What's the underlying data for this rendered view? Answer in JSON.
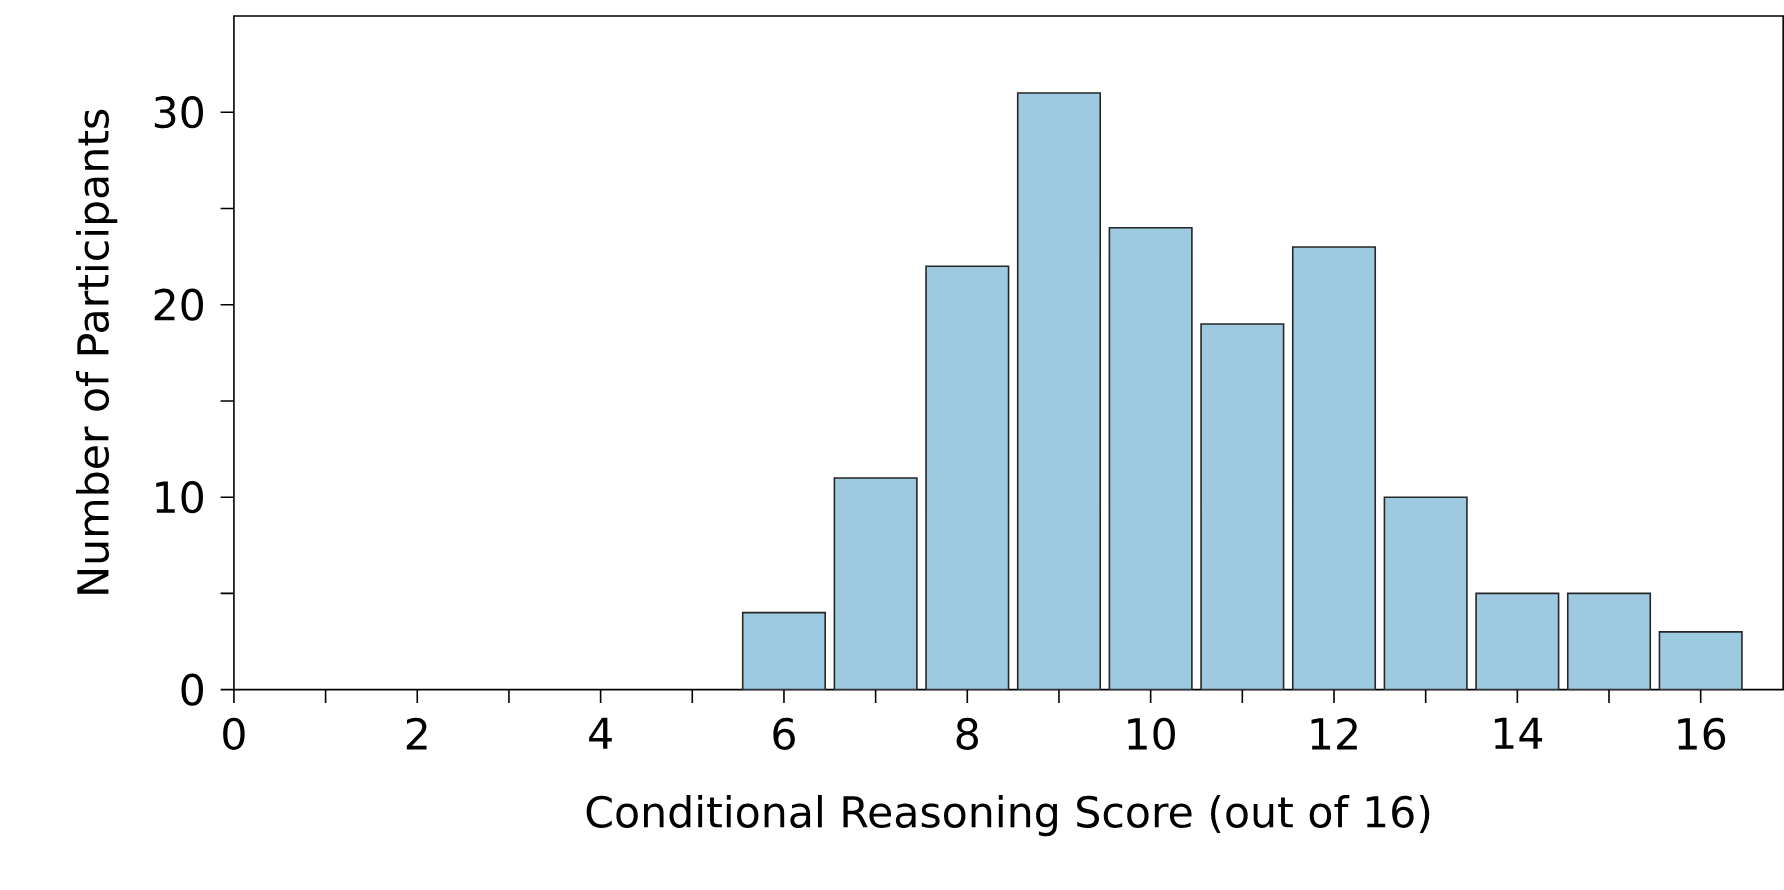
{
  "chart_data": {
    "type": "bar",
    "xlabel": "Conditional Reasoning Score (out of 16)",
    "ylabel": "Number of Participants",
    "x": [
      6,
      7,
      8,
      9,
      10,
      11,
      12,
      13,
      14,
      15,
      16
    ],
    "values": [
      4,
      11,
      22,
      31,
      24,
      19,
      23,
      10,
      5,
      5,
      3
    ],
    "color": "#9ecae1",
    "xlim": [
      0,
      16.9
    ],
    "ylim": [
      0,
      35
    ],
    "xticks": [
      0,
      {
        "value": 1,
        "label": null
      },
      2,
      {
        "value": 3,
        "label": null
      },
      4,
      {
        "value": 5,
        "label": null
      },
      6,
      {
        "value": 7,
        "label": null
      },
      8,
      {
        "value": 9,
        "label": null
      },
      10,
      {
        "value": 11,
        "label": null
      },
      12,
      {
        "value": 13,
        "label": null
      },
      14,
      {
        "value": 15,
        "label": null
      },
      16
    ],
    "yticks": [
      0,
      {
        "value": 5,
        "label": null
      },
      10,
      {
        "value": 15,
        "label": null
      },
      20,
      {
        "value": 25,
        "label": null
      },
      30
    ],
    "grid": false
  }
}
